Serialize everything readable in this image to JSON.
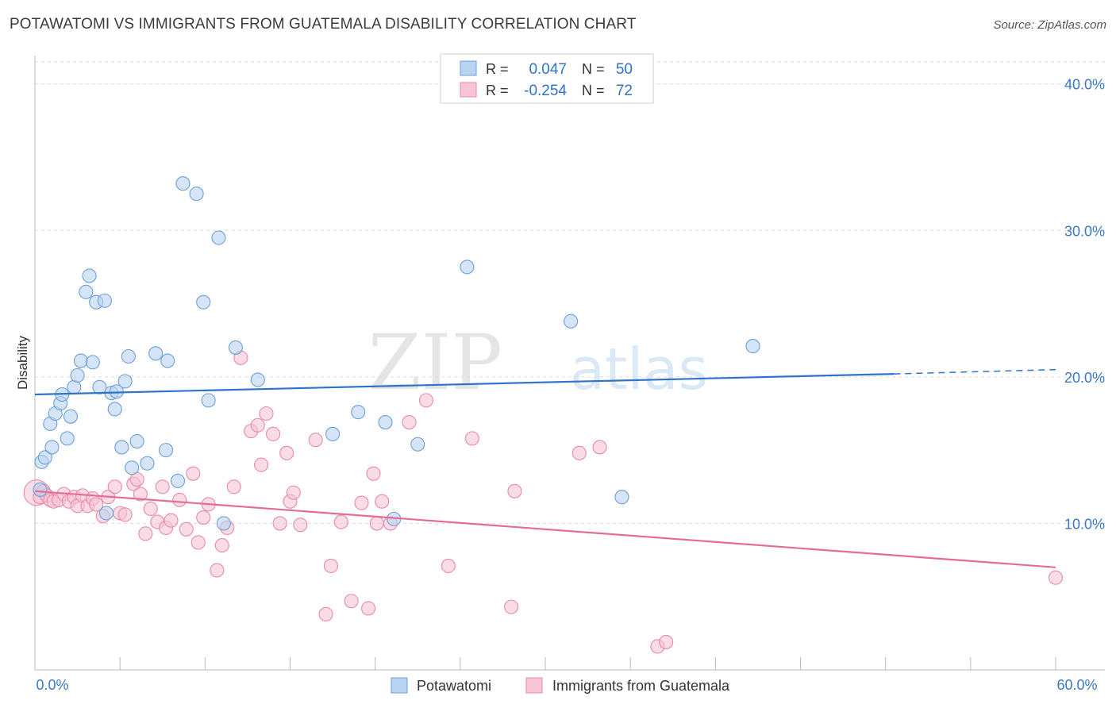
{
  "header": {
    "title": "POTAWATOMI VS IMMIGRANTS FROM GUATEMALA DISABILITY CORRELATION CHART",
    "source": "Source: ZipAtlas.com"
  },
  "watermark": {
    "zip": "ZIP",
    "atlas": "atlas"
  },
  "colors": {
    "blue_fill": "#b9d3f2",
    "blue_stroke": "#6d9fd8",
    "blue_line": "#2f74c9",
    "pink_fill": "#f7c5d5",
    "pink_stroke": "#e98aa9",
    "pink_line": "#e46d95",
    "axis_text": "#3b78c7",
    "grid": "#dddddd"
  },
  "legend": {
    "rows": [
      {
        "r_label": "R =",
        "r_value": "0.047",
        "n_label": "N =",
        "n_value": "50"
      },
      {
        "r_label": "R =",
        "r_value": "-0.254",
        "n_label": "N =",
        "n_value": "72"
      }
    ]
  },
  "chart_data": {
    "type": "scatter",
    "title": "POTAWATOMI VS IMMIGRANTS FROM GUATEMALA DISABILITY CORRELATION CHART",
    "xlabel": "",
    "ylabel": "Disability",
    "xlim": [
      0,
      60
    ],
    "ylim": [
      0,
      41.5
    ],
    "x_tick_labels": [
      "0.0%",
      "60.0%"
    ],
    "y_ticks": [
      10,
      20,
      30,
      40
    ],
    "y_tick_labels": [
      "10.0%",
      "20.0%",
      "30.0%",
      "40.0%"
    ],
    "grid": true,
    "legend_position": "top-center",
    "series": [
      {
        "name": "Potawatomi",
        "r": 0.047,
        "n": 50,
        "trend": {
          "x0": 0,
          "y0": 18.8,
          "x1": 50.5,
          "y1": 20.2,
          "dash_to_x": 60,
          "dash_to_y": 20.5
        },
        "points": [
          [
            0.3,
            12.3
          ],
          [
            0.4,
            14.2
          ],
          [
            0.6,
            14.5
          ],
          [
            0.9,
            16.8
          ],
          [
            1.0,
            15.2
          ],
          [
            1.2,
            17.5
          ],
          [
            1.5,
            18.2
          ],
          [
            1.6,
            18.8
          ],
          [
            1.9,
            15.8
          ],
          [
            2.1,
            17.3
          ],
          [
            2.3,
            19.3
          ],
          [
            2.5,
            20.1
          ],
          [
            2.7,
            21.1
          ],
          [
            3.0,
            25.8
          ],
          [
            3.2,
            26.9
          ],
          [
            3.4,
            21.0
          ],
          [
            3.6,
            25.1
          ],
          [
            3.8,
            19.3
          ],
          [
            4.1,
            25.2
          ],
          [
            4.2,
            10.7
          ],
          [
            4.5,
            18.9
          ],
          [
            4.7,
            17.8
          ],
          [
            4.8,
            19.0
          ],
          [
            5.1,
            15.2
          ],
          [
            5.3,
            19.7
          ],
          [
            5.5,
            21.4
          ],
          [
            5.7,
            13.8
          ],
          [
            6.0,
            15.6
          ],
          [
            6.6,
            14.1
          ],
          [
            7.1,
            21.6
          ],
          [
            7.8,
            21.1
          ],
          [
            7.7,
            15.0
          ],
          [
            8.4,
            12.9
          ],
          [
            8.7,
            33.2
          ],
          [
            9.5,
            32.5
          ],
          [
            9.9,
            25.1
          ],
          [
            10.2,
            18.4
          ],
          [
            10.8,
            29.5
          ],
          [
            11.1,
            10.0
          ],
          [
            11.8,
            22.0
          ],
          [
            13.1,
            19.8
          ],
          [
            17.5,
            16.1
          ],
          [
            19.0,
            17.6
          ],
          [
            20.6,
            16.9
          ],
          [
            21.1,
            10.3
          ],
          [
            22.5,
            15.4
          ],
          [
            25.4,
            27.5
          ],
          [
            31.5,
            23.8
          ],
          [
            34.5,
            11.8
          ],
          [
            42.2,
            22.1
          ]
        ]
      },
      {
        "name": "Immigrants from Guatemala",
        "r": -0.254,
        "n": 72,
        "trend": {
          "x0": 0,
          "y0": 12.2,
          "x1": 60,
          "y1": 7.0
        },
        "points": [
          [
            0.1,
            12.1
          ],
          [
            0.3,
            11.8
          ],
          [
            0.5,
            12.2
          ],
          [
            0.7,
            11.9
          ],
          [
            0.9,
            11.6
          ],
          [
            1.1,
            11.5
          ],
          [
            1.4,
            11.6
          ],
          [
            1.7,
            12.0
          ],
          [
            2.0,
            11.5
          ],
          [
            2.3,
            11.8
          ],
          [
            2.5,
            11.2
          ],
          [
            2.8,
            11.9
          ],
          [
            3.1,
            11.2
          ],
          [
            3.4,
            11.7
          ],
          [
            3.6,
            11.3
          ],
          [
            4.0,
            10.5
          ],
          [
            4.3,
            11.8
          ],
          [
            4.7,
            12.5
          ],
          [
            5.0,
            10.7
          ],
          [
            5.3,
            10.6
          ],
          [
            5.8,
            12.7
          ],
          [
            6.0,
            13.0
          ],
          [
            6.2,
            12.0
          ],
          [
            6.5,
            9.3
          ],
          [
            6.8,
            11.0
          ],
          [
            7.2,
            10.1
          ],
          [
            7.5,
            12.5
          ],
          [
            7.7,
            9.7
          ],
          [
            8.0,
            10.2
          ],
          [
            8.5,
            11.6
          ],
          [
            8.9,
            9.6
          ],
          [
            9.3,
            13.4
          ],
          [
            9.6,
            8.7
          ],
          [
            9.9,
            10.4
          ],
          [
            10.2,
            11.3
          ],
          [
            10.7,
            6.8
          ],
          [
            11.0,
            8.5
          ],
          [
            11.3,
            9.7
          ],
          [
            11.7,
            12.5
          ],
          [
            12.1,
            21.3
          ],
          [
            12.7,
            16.3
          ],
          [
            13.1,
            16.7
          ],
          [
            13.3,
            14.0
          ],
          [
            13.6,
            17.5
          ],
          [
            14.0,
            16.1
          ],
          [
            14.4,
            10.0
          ],
          [
            14.8,
            14.8
          ],
          [
            15.0,
            11.5
          ],
          [
            15.2,
            12.1
          ],
          [
            15.6,
            9.9
          ],
          [
            16.5,
            15.7
          ],
          [
            17.1,
            3.8
          ],
          [
            17.4,
            7.1
          ],
          [
            18.0,
            10.1
          ],
          [
            18.6,
            4.7
          ],
          [
            19.2,
            11.4
          ],
          [
            19.6,
            4.2
          ],
          [
            19.9,
            13.4
          ],
          [
            20.1,
            10.0
          ],
          [
            20.4,
            11.5
          ],
          [
            20.9,
            10.0
          ],
          [
            22.0,
            16.9
          ],
          [
            23.0,
            18.4
          ],
          [
            24.3,
            7.1
          ],
          [
            25.7,
            15.8
          ],
          [
            28.0,
            4.3
          ],
          [
            28.2,
            12.2
          ],
          [
            32.0,
            14.8
          ],
          [
            33.2,
            15.2
          ],
          [
            36.6,
            1.6
          ],
          [
            37.1,
            1.9
          ],
          [
            60.0,
            6.3
          ]
        ]
      }
    ]
  }
}
